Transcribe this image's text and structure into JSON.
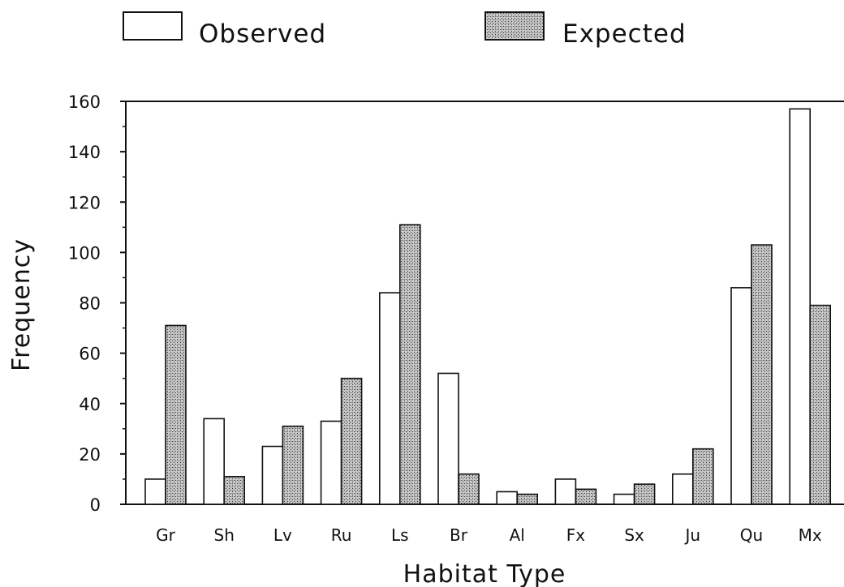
{
  "chart_data": {
    "type": "bar",
    "title": "",
    "xlabel": "Habitat Type",
    "ylabel": "Frequency",
    "ylim": [
      0,
      160
    ],
    "yticks": [
      0,
      20,
      40,
      60,
      80,
      100,
      120,
      140,
      160
    ],
    "categories": [
      "Gr",
      "Sh",
      "Lv",
      "Ru",
      "Ls",
      "Br",
      "Al",
      "Fx",
      "Sx",
      "Ju",
      "Qu",
      "Mx"
    ],
    "series": [
      {
        "name": "Observed",
        "fill": "#ffffff",
        "values": [
          10,
          34,
          23,
          33,
          84,
          52,
          5,
          10,
          4,
          12,
          86,
          157
        ]
      },
      {
        "name": "Expected",
        "fill": "#b0b0b0",
        "values": [
          71,
          11,
          31,
          50,
          111,
          12,
          4,
          6,
          8,
          22,
          103,
          79
        ]
      }
    ],
    "legend_position": "top",
    "grid": false
  }
}
